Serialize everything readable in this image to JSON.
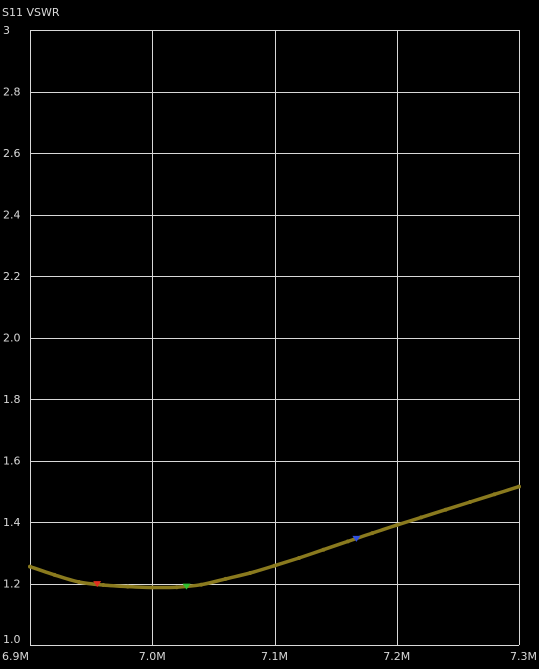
{
  "chart_data": {
    "type": "line",
    "title": "S11 VSWR",
    "xlabel": "",
    "ylabel": "",
    "xlim": [
      6900000,
      7300000
    ],
    "ylim": [
      1.0,
      3.0
    ],
    "grid": true,
    "x_ticks": [
      {
        "value": 6900000,
        "label": "6.9M"
      },
      {
        "value": 7000000,
        "label": "7.0M"
      },
      {
        "value": 7100000,
        "label": "7.1M"
      },
      {
        "value": 7200000,
        "label": "7.2M"
      },
      {
        "value": 7300000,
        "label": "7.3M"
      }
    ],
    "y_ticks": [
      {
        "value": 1.0,
        "label": "1.0"
      },
      {
        "value": 1.2,
        "label": "1.2"
      },
      {
        "value": 1.4,
        "label": "1.4"
      },
      {
        "value": 1.6,
        "label": "1.6"
      },
      {
        "value": 1.8,
        "label": "1.8"
      },
      {
        "value": 2.0,
        "label": "2.0"
      },
      {
        "value": 2.2,
        "label": "2.2"
      },
      {
        "value": 2.4,
        "label": "2.4"
      },
      {
        "value": 2.6,
        "label": "2.6"
      },
      {
        "value": 2.8,
        "label": "2.8"
      },
      {
        "value": 3.0,
        "label": "3"
      }
    ],
    "series": [
      {
        "color": "#8a7a1e",
        "x": [
          6900000,
          6920000,
          6940000,
          6960000,
          6980000,
          7000000,
          7020000,
          7040000,
          7060000,
          7080000,
          7100000,
          7120000,
          7140000,
          7160000,
          7180000,
          7200000,
          7220000,
          7240000,
          7260000,
          7280000,
          7300000
        ],
        "y": [
          1.255,
          1.228,
          1.205,
          1.195,
          1.19,
          1.187,
          1.188,
          1.196,
          1.215,
          1.234,
          1.258,
          1.283,
          1.31,
          1.337,
          1.364,
          1.39,
          1.415,
          1.44,
          1.465,
          1.49,
          1.515
        ]
      }
    ],
    "markers": [
      {
        "x": 6955000,
        "y": 1.198,
        "color": "#e03020"
      },
      {
        "x": 7028000,
        "y": 1.19,
        "color": "#30c030"
      },
      {
        "x": 7167000,
        "y": 1.345,
        "color": "#3050e0"
      }
    ],
    "colors": {
      "background": "#000000",
      "grid": "#d8d8d8",
      "text": "#d8d8d8"
    }
  }
}
